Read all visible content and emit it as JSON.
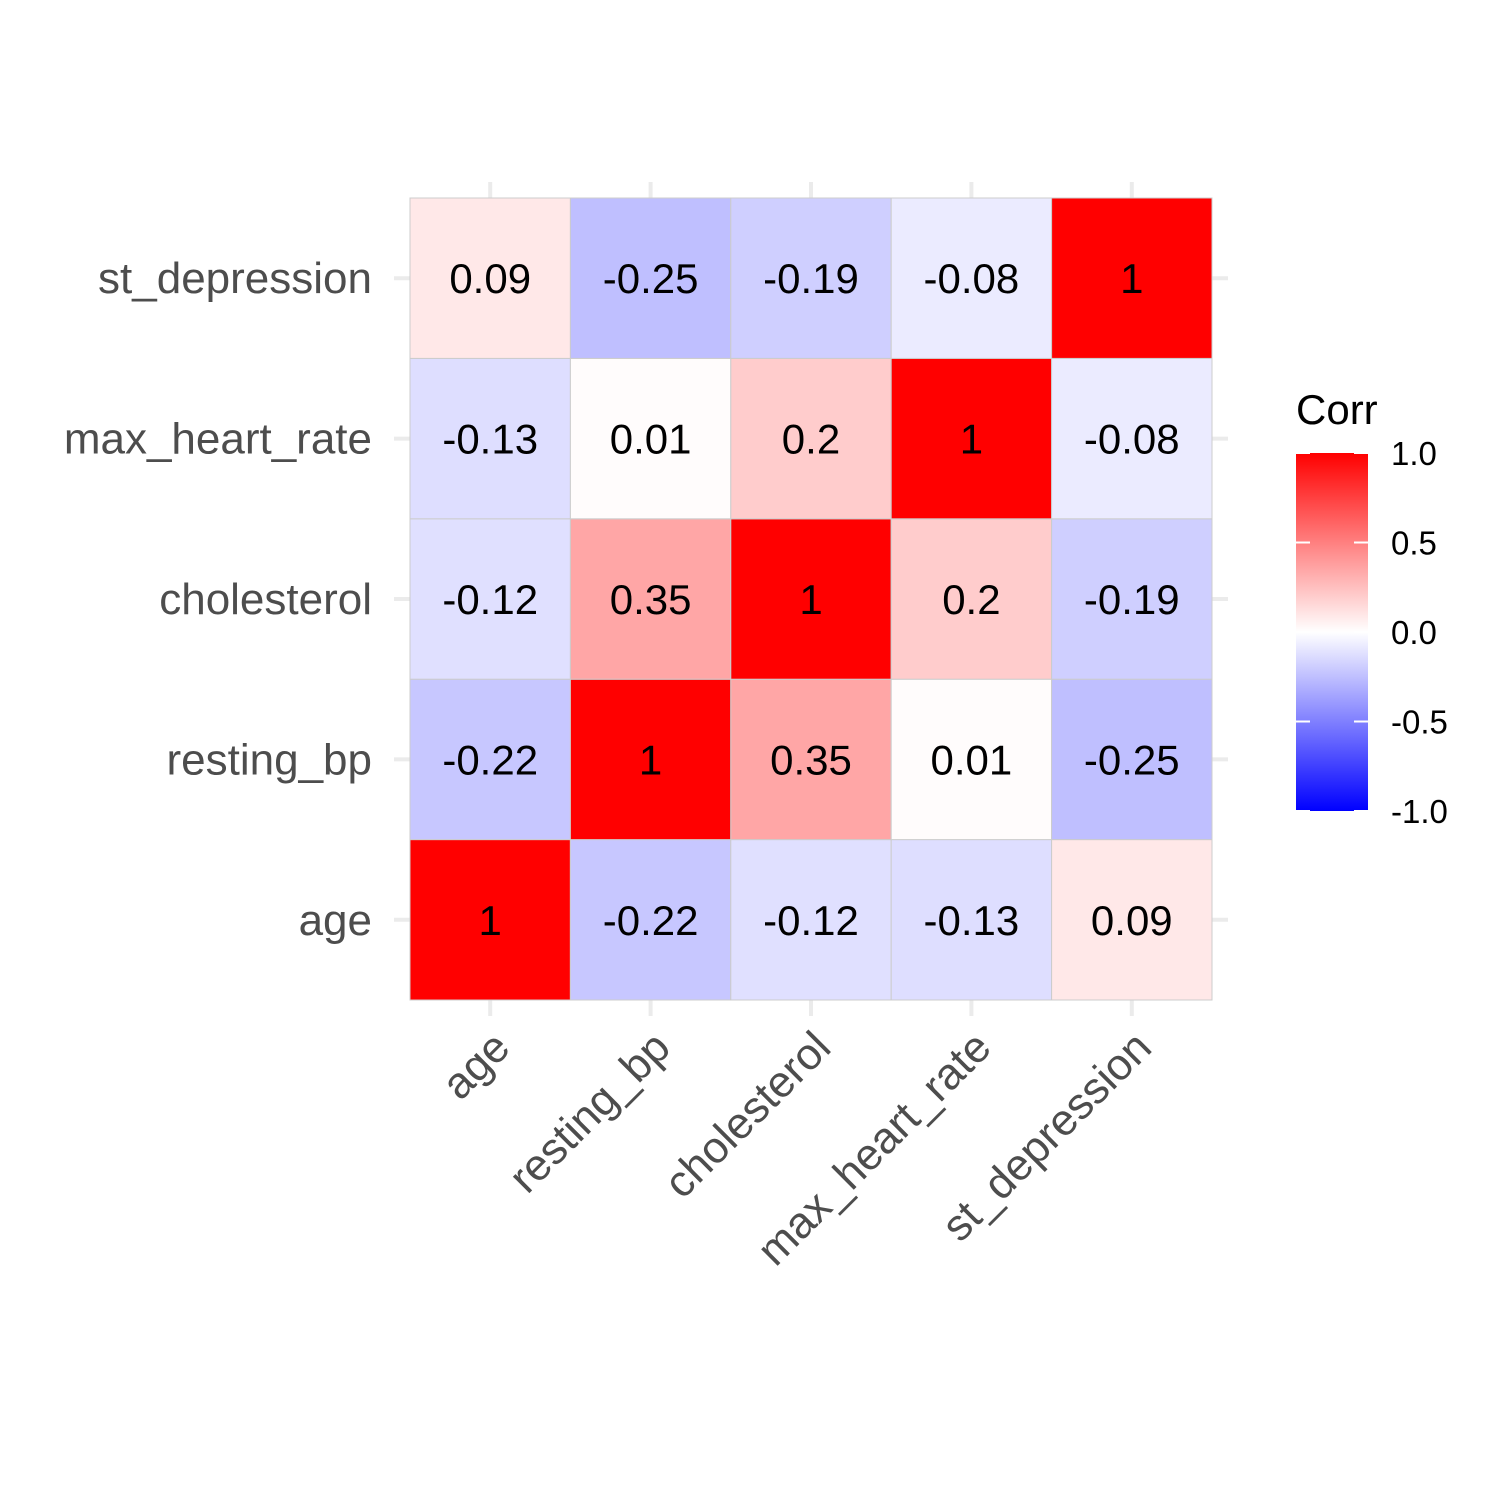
{
  "chart_data": {
    "type": "heatmap",
    "variables": [
      "age",
      "resting_bp",
      "cholesterol",
      "max_heart_rate",
      "st_depression"
    ],
    "matrix": [
      [
        1,
        -0.22,
        -0.12,
        -0.13,
        0.09
      ],
      [
        -0.22,
        1,
        0.35,
        0.01,
        -0.25
      ],
      [
        -0.12,
        0.35,
        1,
        0.2,
        -0.19
      ],
      [
        -0.13,
        0.01,
        0.2,
        1,
        -0.08
      ],
      [
        0.09,
        -0.25,
        -0.19,
        -0.08,
        1
      ]
    ],
    "cell_labels": [
      [
        "1",
        "-0.22",
        "-0.12",
        "-0.13",
        "0.09"
      ],
      [
        "-0.22",
        "1",
        "0.35",
        "0.01",
        "-0.25"
      ],
      [
        "-0.12",
        "0.35",
        "1",
        "0.2",
        "-0.19"
      ],
      [
        "-0.13",
        "0.01",
        "0.2",
        "1",
        "-0.08"
      ],
      [
        "0.09",
        "-0.25",
        "-0.19",
        "-0.08",
        "1"
      ]
    ],
    "x_order": "left-to-right",
    "y_order": "bottom-to-top",
    "x_tick_rotation_deg": 45,
    "grid": true,
    "legend": {
      "title": "Corr",
      "placement": "right",
      "range": [
        -1,
        1
      ],
      "ticks": [
        1.0,
        0.5,
        0.0,
        -0.5,
        -1.0
      ],
      "tick_labels": [
        "1.0",
        "0.5",
        "0.0",
        "-0.5",
        "-1.0"
      ]
    },
    "colors": {
      "low": "#0000ff",
      "mid": "#ffffff",
      "high": "#ff0000",
      "cell_border": "#cccccc",
      "grid": "#ebebeb"
    }
  }
}
